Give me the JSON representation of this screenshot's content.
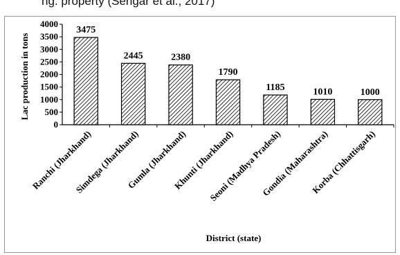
{
  "header_fragment": "ng. property (Sengar et al., 2017)",
  "chart_data": {
    "type": "bar",
    "categories": [
      "Ranchi (Jharkhand)",
      "Simdega (Jharkhand)",
      "Gumla (Jharkhand)",
      "Khunti (Jharkhand)",
      "Seoni (Madhya Pradesh)",
      "Gondia (Maharashtra)",
      "Korba (Chhattisgarh)"
    ],
    "values": [
      3475,
      2445,
      2380,
      1790,
      1185,
      1010,
      1000
    ],
    "data_labels": [
      "3475",
      "2445",
      "2380",
      "1790",
      "1185",
      "1010",
      "1000"
    ],
    "title": "",
    "xlabel": "District (state)",
    "ylabel": "Lac production in tons",
    "ylim": [
      0,
      4000
    ],
    "yticks": [
      0,
      500,
      1000,
      1500,
      2000,
      2500,
      3000,
      3500,
      4000
    ],
    "ytick_labels": [
      "0",
      "500",
      "1000",
      "1500",
      "2000",
      "2500",
      "3000",
      "3500",
      "4000"
    ],
    "grid": false,
    "legend": "none",
    "bar_fill": "diagonal-hatch",
    "colors": {
      "bar_edge": "#000000",
      "hatch": "#000000",
      "background": "#ffffff"
    }
  }
}
